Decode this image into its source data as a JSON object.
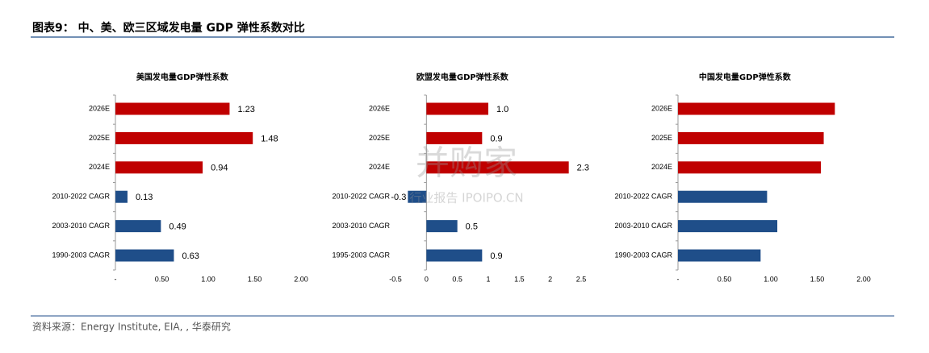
{
  "header": {
    "title": "图表9： 中、美、欧三区域发电量 GDP 弹性系数对比"
  },
  "source": "资料来源：Energy Institute, EIA, ,        华泰研究",
  "watermark": {
    "main": "并购家",
    "sub": "行业报告 IPOIPO.CN"
  },
  "chart_data": [
    {
      "type": "bar",
      "orientation": "horizontal",
      "title": "美国发电量GDP弹性系数",
      "categories": [
        "2026E",
        "2025E",
        "2024E",
        "2010-2022 CAGR",
        "2003-2010 CAGR",
        "1990-2003 CAGR"
      ],
      "values": [
        1.23,
        1.48,
        0.94,
        0.13,
        0.49,
        0.63
      ],
      "colors": [
        "#c00000",
        "#c00000",
        "#c00000",
        "#1f4e89",
        "#1f4e89",
        "#1f4e89"
      ],
      "data_labels": true,
      "xlim": [
        0,
        2
      ],
      "xticks": [
        {
          "value": 0,
          "label": "-"
        },
        {
          "value": 0.5,
          "label": "0.50"
        },
        {
          "value": 1,
          "label": "1.00"
        },
        {
          "value": 1.5,
          "label": "1.50"
        },
        {
          "value": 2,
          "label": "2.00"
        }
      ]
    },
    {
      "type": "bar",
      "orientation": "horizontal",
      "title": "欧盟发电量GDP弹性系数",
      "categories": [
        "2026E",
        "2025E",
        "2024E",
        "2010-2022 CAGR",
        "2003-2010 CAGR",
        "1995-2003 CAGR"
      ],
      "values": [
        1.0,
        0.9,
        2.3,
        -0.3,
        0.5,
        0.9
      ],
      "value_labels": [
        "1.0",
        "0.9",
        "2.3",
        "-0.3",
        "0.5",
        "0.9"
      ],
      "colors": [
        "#c00000",
        "#c00000",
        "#c00000",
        "#1f4e89",
        "#1f4e89",
        "#1f4e89"
      ],
      "data_labels": true,
      "xlim": [
        -0.5,
        2.5
      ],
      "xticks": [
        -0.5,
        0,
        0.5,
        1,
        1.5,
        2,
        2.5
      ]
    },
    {
      "type": "bar",
      "orientation": "horizontal",
      "title": "中国发电量GDP弹性系数",
      "categories": [
        "2026E",
        "2025E",
        "2024E",
        "2010-2022 CAGR",
        "2003-2010 CAGR",
        "1990-2003 CAGR"
      ],
      "values": [
        1.69,
        1.57,
        1.54,
        0.96,
        1.07,
        0.89
      ],
      "colors": [
        "#c00000",
        "#c00000",
        "#c00000",
        "#1f4e89",
        "#1f4e89",
        "#1f4e89"
      ],
      "data_labels": false,
      "xlim": [
        0,
        2
      ],
      "xticks": [
        {
          "value": 0,
          "label": "-"
        },
        {
          "value": 0.5,
          "label": "0.50"
        },
        {
          "value": 1,
          "label": "1.00"
        },
        {
          "value": 1.5,
          "label": "1.50"
        },
        {
          "value": 2,
          "label": "2.00"
        }
      ]
    }
  ]
}
